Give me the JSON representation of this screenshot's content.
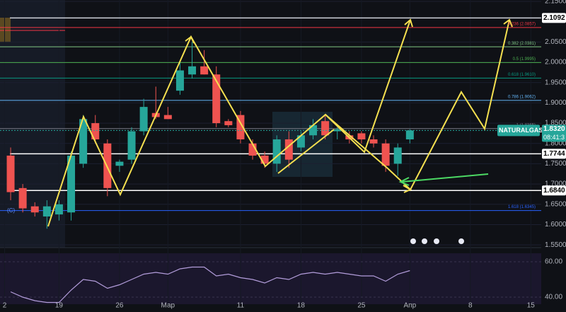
{
  "chart_data": {
    "type": "candlestick",
    "symbol": "NATURALGAS",
    "countdown": "08:41:3",
    "annotation": "(C)",
    "up_color": "#26a69a",
    "down_color": "#ef5350",
    "open": [
      1.77,
      1.69,
      1.645,
      1.62,
      1.625,
      1.63,
      1.75,
      1.85,
      1.8,
      1.745,
      1.76,
      1.83,
      1.875,
      1.87,
      1.93,
      1.97,
      1.99,
      1.97,
      1.855,
      1.87,
      1.8,
      1.77,
      1.75,
      1.81,
      1.79,
      1.82,
      1.855,
      1.83,
      1.82,
      1.825,
      1.81,
      1.8,
      1.75,
      1.81
    ],
    "high": [
      1.79,
      1.7,
      1.655,
      1.66,
      1.66,
      1.78,
      1.87,
      1.87,
      1.81,
      1.76,
      1.84,
      1.91,
      1.94,
      1.89,
      2.0,
      2.05,
      2.03,
      1.99,
      1.86,
      1.88,
      1.81,
      1.78,
      1.82,
      1.83,
      1.83,
      1.86,
      1.87,
      1.84,
      1.83,
      1.83,
      1.82,
      1.81,
      1.8,
      1.835
    ],
    "low": [
      1.66,
      1.63,
      1.62,
      1.59,
      1.61,
      1.61,
      1.74,
      1.8,
      1.67,
      1.73,
      1.75,
      1.82,
      1.86,
      1.86,
      1.92,
      1.96,
      1.97,
      1.84,
      1.84,
      1.8,
      1.76,
      1.74,
      1.73,
      1.74,
      1.78,
      1.81,
      1.81,
      1.81,
      1.8,
      1.8,
      1.79,
      1.73,
      1.72,
      1.8
    ],
    "close": [
      1.68,
      1.64,
      1.63,
      1.645,
      1.65,
      1.77,
      1.86,
      1.81,
      1.69,
      1.755,
      1.83,
      1.89,
      1.865,
      1.86,
      1.98,
      1.99,
      1.97,
      1.85,
      1.845,
      1.81,
      1.77,
      1.75,
      1.81,
      1.76,
      1.82,
      1.845,
      1.82,
      1.835,
      1.81,
      1.81,
      1.8,
      1.745,
      1.79,
      1.832
    ],
    "xlim": [
      -0.88,
      45.73
    ],
    "xticks": [
      {
        "value": -0.5,
        "label": "2"
      },
      {
        "value": 4,
        "label": "19"
      },
      {
        "value": 9,
        "label": "26"
      },
      {
        "value": 13,
        "label": "Мар"
      },
      {
        "value": 19,
        "label": "11"
      },
      {
        "value": 24,
        "label": "18"
      },
      {
        "value": 29,
        "label": "25"
      },
      {
        "value": 33,
        "label": "Апр"
      },
      {
        "value": 38,
        "label": "8"
      },
      {
        "value": 43,
        "label": "15"
      }
    ],
    "ylim": [
      1.545,
      2.15
    ],
    "yticks": [
      {
        "value": 1.55,
        "label": "1.5500"
      },
      {
        "value": 1.6,
        "label": "1.6000"
      },
      {
        "value": 1.65,
        "label": "1.6500"
      },
      {
        "value": 1.7,
        "label": "1.7000"
      },
      {
        "value": 1.75,
        "label": "1.7500"
      },
      {
        "value": 1.8,
        "label": "1.8000"
      },
      {
        "value": 1.85,
        "label": "1.8500"
      },
      {
        "value": 1.9,
        "label": "1.9000"
      },
      {
        "value": 1.95,
        "label": "1.9500"
      },
      {
        "value": 2.0,
        "label": "2.0000"
      },
      {
        "value": 2.05,
        "label": "2.0500"
      },
      {
        "value": 2.15,
        "label": "2.1500"
      }
    ],
    "price_lines": [
      {
        "value": 2.1092,
        "label": "2.1092",
        "color": "#d1d4dc"
      },
      {
        "value": 1.7744,
        "label": "1.7744",
        "color": "#ffffff"
      },
      {
        "value": 1.684,
        "label": "1.6840",
        "color": "#ffffff"
      }
    ],
    "last_price": {
      "value": 1.832,
      "label": "1.8320"
    },
    "fib_levels": [
      {
        "value": 2.0857,
        "label": "0.236 (2.0857)",
        "color": "#f23645"
      },
      {
        "value": 2.0381,
        "label": "0.382 (2.0381)",
        "color": "#81c784"
      },
      {
        "value": 1.9995,
        "label": "0.5 (1.9995)",
        "color": "#4caf50"
      },
      {
        "value": 1.961,
        "label": "0.618 (1.9610)",
        "color": "#089981"
      },
      {
        "value": 1.9062,
        "label": "0.786 (1.9062)",
        "color": "#64b5f6"
      },
      {
        "value": 1.8365,
        "label": "1 (1.8365)",
        "color": "#787b86"
      },
      {
        "value": 1.6345,
        "label": "1.618 (1.6345)",
        "color": "#2962ff"
      }
    ],
    "rsi": {
      "color": "#b39ddb",
      "values": [
        43,
        40,
        38,
        37,
        37,
        44,
        50,
        49,
        45,
        47,
        50,
        53,
        54,
        53,
        56,
        57,
        57,
        52,
        53,
        51,
        50,
        48,
        51,
        50,
        53,
        54,
        53,
        54,
        53,
        52,
        52,
        49,
        53,
        55
      ],
      "ylim": [
        36,
        64.6
      ],
      "yticks": [
        {
          "value": 60,
          "label": "60.00"
        },
        {
          "value": 40,
          "label": "40.00"
        }
      ]
    }
  }
}
